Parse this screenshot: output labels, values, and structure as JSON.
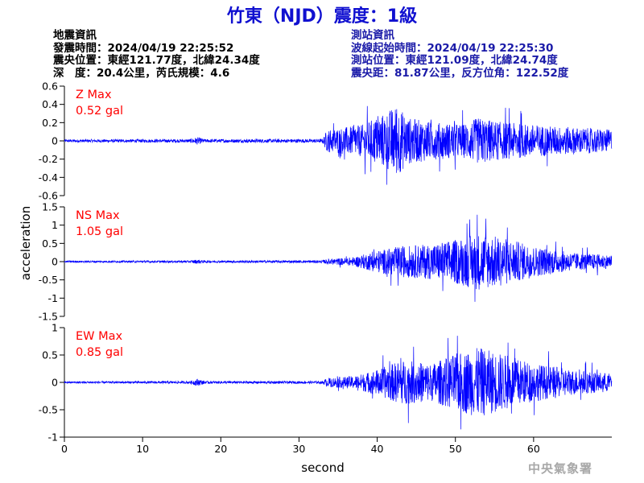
{
  "title": "竹東（NJD）震度：1級",
  "earthquake_info": {
    "heading": "地震資訊",
    "time": "發震時間：2024/04/19 22:25:52",
    "epicenter": "震央位置：東經121.77度，北緯24.34度",
    "depth_magnitude": "深　度：20.4公里，芮氏規模：4.6"
  },
  "station_info": {
    "heading": "測站資訊",
    "wave_start": "波線起始時間：2024/04/19 22:25:30",
    "location": "測站位置：東經121.09度，北緯24.74度",
    "distance": "震央距：81.87公里，反方位角：122.52度"
  },
  "watermark": "中央氣象署",
  "colors": {
    "trace": "#0000ff",
    "label": "#ff0000",
    "title": "#1010d0",
    "station_info": "#1a1aa8"
  },
  "chart_data": {
    "type": "line",
    "xlabel": "second",
    "ylabel": "acceleration",
    "xlim": [
      0,
      70
    ],
    "xticks": [
      0,
      10,
      20,
      30,
      40,
      50,
      60
    ],
    "grid": false,
    "panels": [
      {
        "label": "Z Max",
        "max_text": "0.52 gal",
        "peak": 0.52,
        "ylim": [
          -0.6,
          0.6
        ],
        "yticks": [
          0.6,
          0.4,
          0.2,
          0,
          -0.2,
          -0.4,
          -0.6
        ],
        "ytick_labels": [
          "0.6",
          "0.4",
          "0.2",
          "0",
          "-0.2",
          "-0.4",
          "-0.6"
        ],
        "envelope": [
          [
            0,
            0.015
          ],
          [
            16,
            0.018
          ],
          [
            17,
            0.04
          ],
          [
            18,
            0.018
          ],
          [
            33,
            0.02
          ],
          [
            33.6,
            0.12
          ],
          [
            38,
            0.17
          ],
          [
            41,
            0.3
          ],
          [
            42.5,
            0.38
          ],
          [
            44,
            0.25
          ],
          [
            47,
            0.2
          ],
          [
            51,
            0.18
          ],
          [
            53,
            0.25
          ],
          [
            56,
            0.2
          ],
          [
            62,
            0.16
          ],
          [
            70,
            0.12
          ]
        ]
      },
      {
        "label": "NS Max",
        "max_text": "1.05 gal",
        "peak": 1.05,
        "ylim": [
          -1.5,
          1.5
        ],
        "yticks": [
          1.5,
          1,
          0.5,
          0,
          -0.5,
          -1,
          -1.5
        ],
        "ytick_labels": [
          "1.5",
          "1",
          "0.5",
          "0",
          "-0.5",
          "-1",
          "-1.5"
        ],
        "envelope": [
          [
            0,
            0.02
          ],
          [
            16,
            0.025
          ],
          [
            17,
            0.05
          ],
          [
            18,
            0.025
          ],
          [
            33,
            0.03
          ],
          [
            33.6,
            0.06
          ],
          [
            37,
            0.1
          ],
          [
            40,
            0.25
          ],
          [
            43,
            0.35
          ],
          [
            47,
            0.4
          ],
          [
            50,
            0.5
          ],
          [
            53,
            0.65
          ],
          [
            56,
            0.55
          ],
          [
            60,
            0.35
          ],
          [
            65,
            0.2
          ],
          [
            70,
            0.15
          ]
        ]
      },
      {
        "label": "EW Max",
        "max_text": "0.85 gal",
        "peak": 0.85,
        "ylim": [
          -1,
          1
        ],
        "yticks": [
          1,
          0.5,
          0,
          -0.5,
          -1
        ],
        "ytick_labels": [
          "1",
          "0.5",
          "0",
          "-0.5",
          "-1"
        ],
        "envelope": [
          [
            0,
            0.015
          ],
          [
            16,
            0.02
          ],
          [
            17,
            0.06
          ],
          [
            18,
            0.02
          ],
          [
            33,
            0.02
          ],
          [
            33.6,
            0.07
          ],
          [
            37,
            0.1
          ],
          [
            40,
            0.2
          ],
          [
            43,
            0.35
          ],
          [
            47,
            0.3
          ],
          [
            50,
            0.45
          ],
          [
            53,
            0.55
          ],
          [
            56,
            0.45
          ],
          [
            60,
            0.3
          ],
          [
            65,
            0.2
          ],
          [
            70,
            0.14
          ]
        ]
      }
    ]
  }
}
